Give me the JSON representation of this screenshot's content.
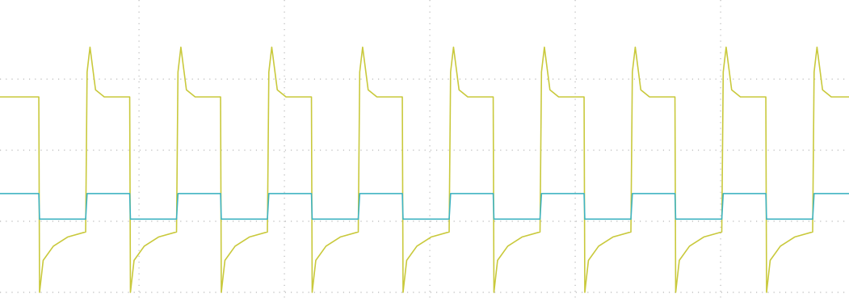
{
  "chart_data": {
    "type": "line",
    "x": [
      -0.956,
      -0.689,
      -0.684,
      -0.659,
      -0.589,
      -0.489,
      -0.367,
      -0.357,
      -0.337,
      -0.299,
      -0.239,
      -0.064,
      -0.059,
      -0.034,
      0.036,
      0.136,
      0.258,
      0.268,
      0.288,
      0.326,
      0.386,
      0.561,
      0.566,
      0.591,
      0.661,
      0.761,
      0.883,
      0.893,
      0.913,
      0.951,
      1.011,
      1.186,
      1.191,
      1.216,
      1.286,
      1.386,
      1.508,
      1.518,
      1.538,
      1.576,
      1.636,
      1.811,
      1.816,
      1.841,
      1.911,
      2.011,
      2.133,
      2.143,
      2.163,
      2.201,
      2.261,
      2.436,
      2.441,
      2.466,
      2.536,
      2.636,
      2.758,
      2.768,
      2.788,
      2.826,
      2.886,
      3.061,
      3.066,
      3.091,
      3.161,
      3.261,
      3.383,
      3.393,
      3.413,
      3.451,
      3.511,
      3.686,
      3.691,
      3.716,
      3.786,
      3.886,
      4.008,
      4.018,
      4.038,
      4.076,
      4.136,
      4.311,
      4.316,
      4.341,
      4.411,
      4.511,
      4.633,
      4.643,
      4.663,
      4.701,
      4.761,
      4.883
    ],
    "series": [
      {
        "color": "#c9c93c",
        "values": [
          2.75,
          2.75,
          0,
          0.45,
          0.65,
          0.78,
          0.85,
          3.1,
          3.45,
          2.85,
          2.75,
          2.75,
          0,
          0.45,
          0.65,
          0.78,
          0.85,
          3.1,
          3.45,
          2.85,
          2.75,
          2.75,
          0,
          0.45,
          0.65,
          0.78,
          0.85,
          3.1,
          3.45,
          2.85,
          2.75,
          2.75,
          0,
          0.45,
          0.65,
          0.78,
          0.85,
          3.1,
          3.45,
          2.85,
          2.75,
          2.75,
          0,
          0.45,
          0.65,
          0.78,
          0.85,
          3.1,
          3.45,
          2.85,
          2.75,
          2.75,
          0,
          0.45,
          0.65,
          0.78,
          0.85,
          3.1,
          3.45,
          2.85,
          2.75,
          2.75,
          0,
          0.45,
          0.65,
          0.78,
          0.85,
          3.1,
          3.45,
          2.85,
          2.75,
          2.75,
          0,
          0.45,
          0.65,
          0.78,
          0.85,
          3.1,
          3.45,
          2.85,
          2.75,
          2.75,
          0,
          0.45,
          0.65,
          0.78,
          0.85,
          3.1,
          3.45,
          2.85,
          2.75,
          2.75
        ]
      },
      {
        "color": "#3fb3c2",
        "values": [
          1.39,
          1.39,
          1.03,
          1.03,
          1.03,
          1.03,
          1.03,
          1.39,
          1.39,
          1.39,
          1.39,
          1.39,
          1.03,
          1.03,
          1.03,
          1.03,
          1.03,
          1.39,
          1.39,
          1.39,
          1.39,
          1.39,
          1.03,
          1.03,
          1.03,
          1.03,
          1.03,
          1.39,
          1.39,
          1.39,
          1.39,
          1.39,
          1.03,
          1.03,
          1.03,
          1.03,
          1.03,
          1.39,
          1.39,
          1.39,
          1.39,
          1.39,
          1.03,
          1.03,
          1.03,
          1.03,
          1.03,
          1.39,
          1.39,
          1.39,
          1.39,
          1.39,
          1.03,
          1.03,
          1.03,
          1.03,
          1.03,
          1.39,
          1.39,
          1.39,
          1.39,
          1.39,
          1.03,
          1.03,
          1.03,
          1.03,
          1.03,
          1.39,
          1.39,
          1.39,
          1.39,
          1.39,
          1.03,
          1.03,
          1.03,
          1.03,
          1.03,
          1.39,
          1.39,
          1.39,
          1.39,
          1.39,
          1.03,
          1.03,
          1.03,
          1.03,
          1.03,
          1.39,
          1.39,
          1.39,
          1.39,
          1.39
        ]
      }
    ],
    "xlim": [
      -0.956,
      4.883
    ],
    "xticks": [
      0,
      1,
      2,
      3,
      4
    ],
    "ylim": [
      0,
      4
    ],
    "yticks": [
      0,
      1,
      2,
      3
    ],
    "grid": true
  }
}
